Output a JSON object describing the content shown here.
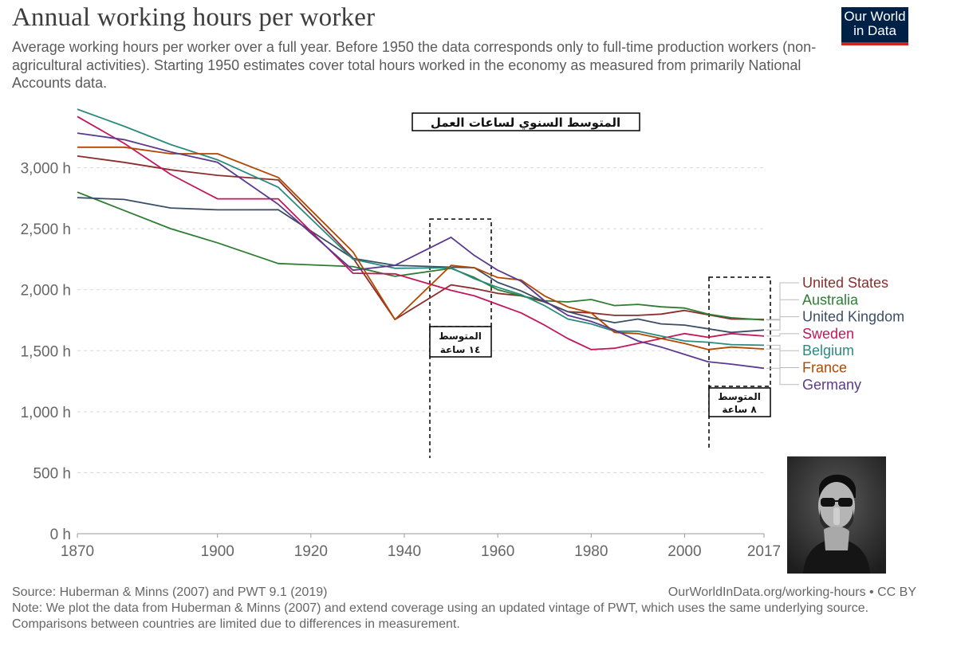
{
  "header": {
    "title": "Annual working hours per worker",
    "subtitle": "Average working hours per worker over a full year. Before 1950 the data corresponds only to full-time production workers (non-agricultural activities). Starting 1950 estimates cover total hours worked in the economy as measured from primarily National Accounts data.",
    "logo_line1": "Our World",
    "logo_line2": "in Data"
  },
  "footer": {
    "source": "Source: Huberman & Minns (2007) and PWT 9.1 (2019)",
    "url": "OurWorldInData.org/working-hours • CC BY",
    "note": "Note: We plot the data from Huberman & Minns (2007) and extend coverage using an updated vintage of PWT, which uses the same underlying source. Comparisons between countries are limited due to differences in measurement."
  },
  "annotations": {
    "arabic_title": "المتوسط السنوي لساعات العمل",
    "box1_line1": "المتوسط",
    "box1_line2": "١٤ ساعة",
    "box2_line1": "المتوسط",
    "box2_line2": "٨ ساعة"
  },
  "photo": {
    "icon": "person-shush-photo"
  },
  "chart_data": {
    "type": "line",
    "title": "Annual working hours per worker",
    "xlabel": "",
    "ylabel": "",
    "xlim": [
      1870,
      2017
    ],
    "ylim": [
      0,
      3500
    ],
    "x_ticks": [
      1870,
      1900,
      1920,
      1940,
      1960,
      1980,
      2000,
      2017
    ],
    "y_ticks": [
      0,
      500,
      1000,
      1500,
      2000,
      2500,
      3000
    ],
    "y_tick_labels": [
      "0 h",
      "500 h",
      "1,000 h",
      "1,500 h",
      "2,000 h",
      "2,500 h",
      "3,000 h"
    ],
    "grid": "horizontal dashed",
    "legend": "right",
    "series": [
      {
        "name": "United States",
        "color": "#8c2d2d",
        "points": [
          [
            1870,
            3096
          ],
          [
            1880,
            3044
          ],
          [
            1890,
            2983
          ],
          [
            1900,
            2938
          ],
          [
            1913,
            2900
          ],
          [
            1929,
            2260
          ],
          [
            1938,
            1756
          ],
          [
            1950,
            2040
          ],
          [
            1955,
            2010
          ],
          [
            1960,
            1970
          ],
          [
            1965,
            1950
          ],
          [
            1970,
            1900
          ],
          [
            1975,
            1820
          ],
          [
            1980,
            1810
          ],
          [
            1985,
            1790
          ],
          [
            1990,
            1790
          ],
          [
            1995,
            1800
          ],
          [
            2000,
            1830
          ],
          [
            2005,
            1795
          ],
          [
            2010,
            1760
          ],
          [
            2017,
            1757
          ]
        ]
      },
      {
        "name": "Australia",
        "color": "#2e7d32",
        "points": [
          [
            1870,
            2800
          ],
          [
            1880,
            2650
          ],
          [
            1890,
            2500
          ],
          [
            1900,
            2385
          ],
          [
            1913,
            2215
          ],
          [
            1929,
            2190
          ],
          [
            1938,
            2110
          ],
          [
            1950,
            2175
          ],
          [
            1955,
            2100
          ],
          [
            1960,
            2000
          ],
          [
            1965,
            1950
          ],
          [
            1970,
            1910
          ],
          [
            1975,
            1900
          ],
          [
            1980,
            1920
          ],
          [
            1985,
            1870
          ],
          [
            1990,
            1880
          ],
          [
            1995,
            1860
          ],
          [
            2000,
            1850
          ],
          [
            2005,
            1800
          ],
          [
            2010,
            1770
          ],
          [
            2017,
            1752
          ]
        ]
      },
      {
        "name": "United Kingdom",
        "color": "#3c4e66",
        "points": [
          [
            1870,
            2755
          ],
          [
            1880,
            2740
          ],
          [
            1890,
            2670
          ],
          [
            1900,
            2655
          ],
          [
            1913,
            2656
          ],
          [
            1929,
            2257
          ],
          [
            1938,
            2200
          ],
          [
            1950,
            2185
          ],
          [
            1955,
            2180
          ],
          [
            1960,
            2060
          ],
          [
            1965,
            1990
          ],
          [
            1970,
            1900
          ],
          [
            1975,
            1820
          ],
          [
            1980,
            1770
          ],
          [
            1985,
            1730
          ],
          [
            1990,
            1760
          ],
          [
            1995,
            1720
          ],
          [
            2000,
            1710
          ],
          [
            2005,
            1680
          ],
          [
            2010,
            1650
          ],
          [
            2017,
            1670
          ]
        ]
      },
      {
        "name": "Sweden",
        "color": "#c2185b",
        "points": [
          [
            1870,
            3420
          ],
          [
            1880,
            3200
          ],
          [
            1890,
            2945
          ],
          [
            1900,
            2745
          ],
          [
            1913,
            2745
          ],
          [
            1929,
            2135
          ],
          [
            1938,
            2130
          ],
          [
            1950,
            1995
          ],
          [
            1955,
            1950
          ],
          [
            1960,
            1880
          ],
          [
            1965,
            1810
          ],
          [
            1970,
            1710
          ],
          [
            1975,
            1600
          ],
          [
            1980,
            1510
          ],
          [
            1985,
            1520
          ],
          [
            1990,
            1560
          ],
          [
            1995,
            1600
          ],
          [
            2000,
            1640
          ],
          [
            2005,
            1610
          ],
          [
            2010,
            1640
          ],
          [
            2017,
            1620
          ]
        ]
      },
      {
        "name": "Belgium",
        "color": "#2a8a80",
        "points": [
          [
            1870,
            3480
          ],
          [
            1880,
            3340
          ],
          [
            1890,
            3190
          ],
          [
            1900,
            3065
          ],
          [
            1913,
            2840
          ],
          [
            1929,
            2250
          ],
          [
            1938,
            2176
          ],
          [
            1950,
            2180
          ],
          [
            1955,
            2090
          ],
          [
            1960,
            2020
          ],
          [
            1965,
            1960
          ],
          [
            1970,
            1870
          ],
          [
            1975,
            1760
          ],
          [
            1980,
            1720
          ],
          [
            1985,
            1660
          ],
          [
            1990,
            1660
          ],
          [
            1995,
            1620
          ],
          [
            2000,
            1580
          ],
          [
            2005,
            1570
          ],
          [
            2010,
            1550
          ],
          [
            2017,
            1545
          ]
        ]
      },
      {
        "name": "France",
        "color": "#b34700",
        "points": [
          [
            1870,
            3168
          ],
          [
            1880,
            3168
          ],
          [
            1890,
            3115
          ],
          [
            1900,
            3115
          ],
          [
            1913,
            2920
          ],
          [
            1929,
            2310
          ],
          [
            1938,
            1756
          ],
          [
            1950,
            2200
          ],
          [
            1955,
            2180
          ],
          [
            1960,
            2100
          ],
          [
            1965,
            2080
          ],
          [
            1970,
            1950
          ],
          [
            1975,
            1860
          ],
          [
            1980,
            1810
          ],
          [
            1985,
            1650
          ],
          [
            1990,
            1640
          ],
          [
            1995,
            1600
          ],
          [
            2000,
            1560
          ],
          [
            2005,
            1510
          ],
          [
            2010,
            1530
          ],
          [
            2017,
            1514
          ]
        ]
      },
      {
        "name": "Germany",
        "color": "#5b3a8e",
        "points": [
          [
            1870,
            3284
          ],
          [
            1880,
            3230
          ],
          [
            1890,
            3130
          ],
          [
            1900,
            3045
          ],
          [
            1913,
            2700
          ],
          [
            1929,
            2160
          ],
          [
            1938,
            2200
          ],
          [
            1950,
            2430
          ],
          [
            1955,
            2280
          ],
          [
            1960,
            2160
          ],
          [
            1965,
            2070
          ],
          [
            1970,
            1910
          ],
          [
            1975,
            1790
          ],
          [
            1980,
            1740
          ],
          [
            1985,
            1670
          ],
          [
            1990,
            1580
          ],
          [
            1995,
            1530
          ],
          [
            2000,
            1470
          ],
          [
            2005,
            1410
          ],
          [
            2010,
            1390
          ],
          [
            2017,
            1356
          ]
        ]
      }
    ]
  }
}
